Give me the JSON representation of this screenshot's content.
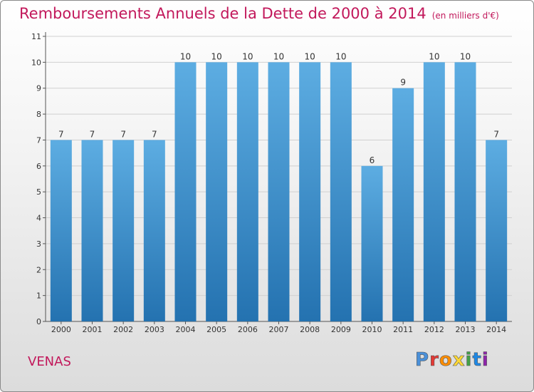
{
  "title": "Remboursements Annuels de la Dette de 2000 à 2014",
  "unit": "(en milliers d'€)",
  "commune": "VENAS",
  "logo": {
    "text": "Proxiti",
    "colors": [
      "#4a90d9",
      "#e53935",
      "#fb8c00",
      "#fdd835",
      "#43a047",
      "#1e88e5",
      "#8e24aa"
    ]
  },
  "colors": {
    "accent": "#c2185b",
    "bar_top": "#5dade2",
    "bar_bottom": "#2472b0"
  },
  "chart_data": {
    "type": "bar",
    "categories": [
      "2000",
      "2001",
      "2002",
      "2003",
      "2004",
      "2005",
      "2006",
      "2007",
      "2008",
      "2009",
      "2010",
      "2011",
      "2012",
      "2013",
      "2014"
    ],
    "values": [
      7,
      7,
      7,
      7,
      10,
      10,
      10,
      10,
      10,
      10,
      6,
      9,
      10,
      10,
      7
    ],
    "yticks": [
      0,
      1,
      2,
      3,
      4,
      5,
      6,
      7,
      8,
      9,
      10,
      11
    ],
    "ylim": [
      0,
      11
    ],
    "grid": true,
    "xlabel": "",
    "ylabel": ""
  }
}
